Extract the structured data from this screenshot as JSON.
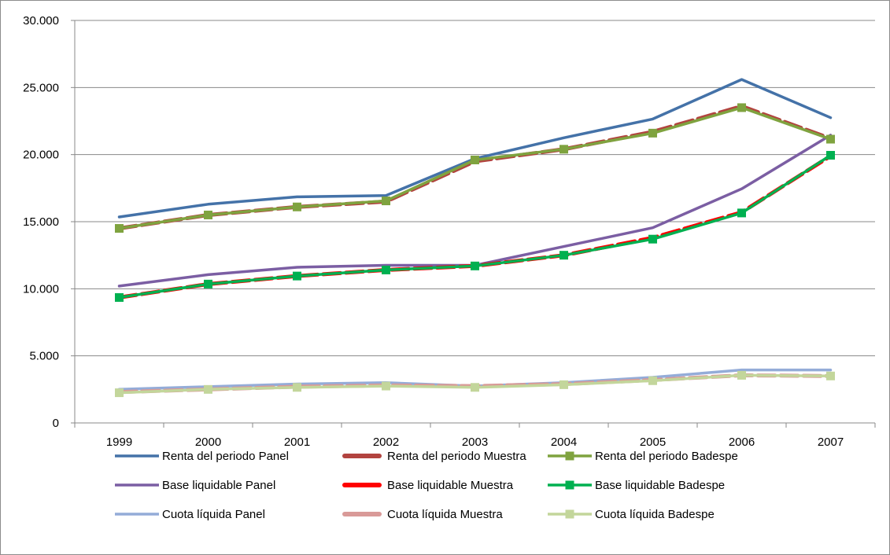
{
  "chart_data": {
    "type": "line",
    "title": "",
    "xlabel": "",
    "ylabel": "",
    "x": [
      "1999",
      "2000",
      "2001",
      "2002",
      "2003",
      "2004",
      "2005",
      "2006",
      "2007"
    ],
    "ylim": [
      0,
      30000
    ],
    "y_ticks": [
      {
        "value": 0,
        "label": "0"
      },
      {
        "value": 5000,
        "label": "5.000"
      },
      {
        "value": 10000,
        "label": "10.000"
      },
      {
        "value": 15000,
        "label": "15.000"
      },
      {
        "value": 20000,
        "label": "20.000"
      },
      {
        "value": 25000,
        "label": "25.000"
      },
      {
        "value": 30000,
        "label": "30.000"
      }
    ],
    "grid": true,
    "legend_position": "bottom",
    "series": [
      {
        "name": "Renta del periodo Panel",
        "color": "#4472a8",
        "style": "solid",
        "marker": "none",
        "values": [
          15350,
          16300,
          16850,
          16950,
          19700,
          21250,
          22650,
          25600,
          22750
        ]
      },
      {
        "name": "Base liquidable  Panel",
        "color": "#7b5ea3",
        "style": "solid",
        "marker": "none",
        "values": [
          10200,
          11050,
          11600,
          11750,
          11750,
          13150,
          14550,
          17450,
          21450
        ]
      },
      {
        "name": "Cuota líquida Panel",
        "color": "#94acd8",
        "style": "solid",
        "marker": "none",
        "values": [
          2500,
          2700,
          2900,
          3000,
          2750,
          3000,
          3400,
          3950,
          3950
        ]
      },
      {
        "name": "Renta del periodo Muestra",
        "color": "#b2433f",
        "style": "dashed",
        "marker": "none",
        "values": [
          14500,
          15500,
          16100,
          16500,
          19500,
          20400,
          21700,
          23600,
          21200
        ]
      },
      {
        "name": "Base liquidable  Muestra",
        "color": "#ff0000",
        "style": "dashed",
        "marker": "none",
        "values": [
          9350,
          10350,
          10950,
          11400,
          11700,
          12500,
          13800,
          15700,
          19900
        ]
      },
      {
        "name": "Cuota líquida  Muestra",
        "color": "#d99a98",
        "style": "dashed",
        "marker": "none",
        "values": [
          2300,
          2500,
          2700,
          2800,
          2750,
          2900,
          3200,
          3550,
          3500
        ]
      },
      {
        "name": "Renta del periodo Badespe",
        "color": "#7fa33f",
        "style": "solid",
        "marker": "square",
        "values": [
          14500,
          15500,
          16100,
          16550,
          19600,
          20400,
          21600,
          23500,
          21150
        ]
      },
      {
        "name": "Base liquidable  Badespe",
        "color": "#00b050",
        "style": "solid",
        "marker": "square",
        "values": [
          9350,
          10350,
          10950,
          11400,
          11700,
          12500,
          13700,
          15650,
          19950
        ]
      },
      {
        "name": "Cuota líquida  Badespe",
        "color": "#c3d69b",
        "style": "solid",
        "marker": "square",
        "values": [
          2250,
          2500,
          2650,
          2750,
          2650,
          2850,
          3150,
          3550,
          3500
        ]
      }
    ]
  }
}
